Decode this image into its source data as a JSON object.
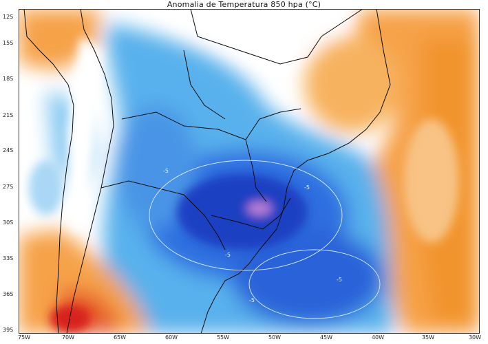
{
  "map": {
    "title": "Anomalia de Temperatura 850 hpa (°C)",
    "lat_labels": [
      "12S",
      "15S",
      "18S",
      "21S",
      "24S",
      "27S",
      "30S",
      "33S",
      "36S",
      "39S"
    ],
    "lon_labels": [
      "75W",
      "70W",
      "65W",
      "60W",
      "55W",
      "50W",
      "45W",
      "40W",
      "35W",
      "30W"
    ],
    "contour_labels": [
      "-5",
      "-5",
      "-5",
      "-5",
      "-5"
    ],
    "colors": {
      "strong_warm": "#e53a1e",
      "warm": "#f6a24a",
      "mild_warm": "#fbd7a6",
      "neutral": "#ffffff",
      "mild_cold": "#bfe2f6",
      "cold": "#59b1ec",
      "strong_cold": "#2c63d9",
      "very_cold": "#1f3fc2",
      "extreme_cold": "#b97fd8"
    }
  }
}
